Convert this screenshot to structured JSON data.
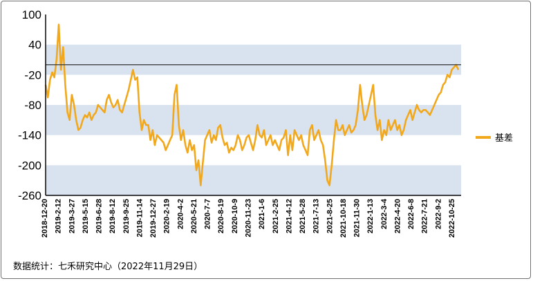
{
  "chart_data": {
    "type": "line",
    "title": "",
    "xlabel": "",
    "ylabel": "",
    "ylim": [
      -260,
      100
    ],
    "y_ticks": [
      100,
      40,
      -20,
      -80,
      -140,
      -200,
      -260
    ],
    "x_ticks": [
      "2018-12-20",
      "2019-2-12",
      "2019-3-27",
      "2019-5-15",
      "2019-6-28",
      "2019-8-12",
      "2019-9-25",
      "2019-11-14",
      "2019-12-27",
      "2020-2-19",
      "2020-4-2",
      "2020-5-21",
      "2020-7-7",
      "2020-8-19",
      "2020-10-9",
      "2020-11-23",
      "2021-1-6",
      "2021-2-25",
      "2021-4-12",
      "2021-5-28",
      "2021-7-13",
      "2021-8-25",
      "2021-10-18",
      "2021-11-30",
      "2022-1-13",
      "2022-3-4",
      "2022-4-20",
      "2022-6-8",
      "2022-7-21",
      "2022-9-2",
      "2022-10-25"
    ],
    "grid": "alternating horizontal bands",
    "reference_line": 0,
    "legend_position": "right",
    "series": [
      {
        "name": "基差",
        "color": "#f2a81d",
        "values": [
          -40,
          -65,
          -30,
          -15,
          -25,
          10,
          80,
          -10,
          35,
          -40,
          -95,
          -110,
          -60,
          -80,
          -110,
          -130,
          -125,
          -110,
          -100,
          -105,
          -95,
          -110,
          -100,
          -95,
          -80,
          -85,
          -90,
          -95,
          -70,
          -60,
          -75,
          -85,
          -80,
          -70,
          -90,
          -95,
          -80,
          -65,
          -50,
          -30,
          -10,
          -30,
          -25,
          -95,
          -130,
          -110,
          -120,
          -120,
          -150,
          -130,
          -160,
          -140,
          -145,
          -150,
          -155,
          -170,
          -160,
          -150,
          -140,
          -60,
          -40,
          -120,
          -150,
          -130,
          -160,
          -175,
          -150,
          -170,
          -160,
          -210,
          -190,
          -240,
          -195,
          -150,
          -140,
          -130,
          -155,
          -140,
          -150,
          -125,
          -120,
          -145,
          -160,
          -155,
          -175,
          -165,
          -170,
          -160,
          -140,
          -150,
          -170,
          -160,
          -145,
          -140,
          -155,
          -170,
          -150,
          -120,
          -140,
          -145,
          -130,
          -160,
          -150,
          -140,
          -160,
          -150,
          -160,
          -170,
          -150,
          -145,
          -130,
          -180,
          -140,
          -170,
          -130,
          -140,
          -150,
          -140,
          -160,
          -170,
          -180,
          -130,
          -120,
          -150,
          -140,
          -130,
          -150,
          -160,
          -190,
          -230,
          -240,
          -200,
          -150,
          -110,
          -130,
          -130,
          -120,
          -140,
          -130,
          -120,
          -135,
          -130,
          -120,
          -90,
          -40,
          -80,
          -110,
          -100,
          -80,
          -60,
          -40,
          -100,
          -130,
          -110,
          -150,
          -130,
          -140,
          -110,
          -130,
          -120,
          -110,
          -130,
          -120,
          -140,
          -130,
          -110,
          -100,
          -90,
          -110,
          -95,
          -80,
          -90,
          -95,
          -90,
          -90,
          -95,
          -100,
          -90,
          -80,
          -70,
          -60,
          -55,
          -40,
          -35,
          -20,
          -25,
          -10,
          -5,
          0,
          -10
        ]
      }
    ]
  },
  "legend": {
    "label": "基差"
  },
  "source_note": "数据统计：七禾研究中心（2022年11月29日）",
  "colors": {
    "band": "#d9e2ef",
    "line": "#f2a81d",
    "axis": "#000000",
    "reference": "#333333"
  }
}
